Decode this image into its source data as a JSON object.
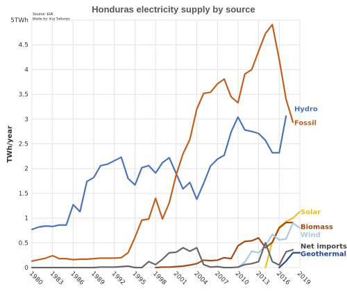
{
  "chart_data": {
    "type": "line",
    "title": "Honduras electricity supply by source",
    "source_lines": [
      "Source: EIA",
      "Made by: Koj Tallungs"
    ],
    "ylabel": "TWh/year",
    "xlabel": "",
    "xlim": [
      1980,
      2019
    ],
    "ylim": [
      0,
      5
    ],
    "x_ticks": [
      "1980",
      "1983",
      "1986",
      "1989",
      "1992",
      "1995",
      "1998",
      "2001",
      "2004",
      "2007",
      "2010",
      "2013",
      "2016",
      "2019"
    ],
    "y_ticks": [
      "0",
      "0.5",
      "1",
      "1.5",
      "2",
      "2.5",
      "3",
      "3.5",
      "4",
      "4.5",
      "5TWh"
    ],
    "grid": true,
    "series": [
      {
        "name": "Hydro",
        "color": "#4a72b5",
        "x": [
          1980,
          1981,
          1982,
          1983,
          1984,
          1985,
          1986,
          1987,
          1988,
          1989,
          1990,
          1991,
          1992,
          1993,
          1994,
          1995,
          1996,
          1997,
          1998,
          1999,
          2000,
          2001,
          2002,
          2003,
          2004,
          2005,
          2006,
          2007,
          2008,
          2009,
          2010,
          2011,
          2012,
          2013,
          2014,
          2015,
          2016,
          2017
        ],
        "values": [
          0.77,
          0.82,
          0.84,
          0.83,
          0.86,
          0.86,
          1.27,
          1.13,
          1.74,
          1.82,
          2.06,
          2.09,
          2.16,
          2.23,
          1.8,
          1.67,
          2.02,
          2.06,
          1.91,
          2.12,
          2.22,
          1.9,
          1.59,
          1.72,
          1.38,
          1.7,
          2.05,
          2.19,
          2.27,
          2.74,
          3.04,
          2.78,
          2.75,
          2.71,
          2.57,
          2.32,
          2.32,
          3.06
        ]
      },
      {
        "name": "Fossil",
        "color": "#c05f1e",
        "x": [
          1980,
          1981,
          1982,
          1983,
          1984,
          1985,
          1986,
          1987,
          1988,
          1989,
          1990,
          1991,
          1992,
          1993,
          1994,
          1995,
          1996,
          1997,
          1998,
          1999,
          2000,
          2001,
          2002,
          2003,
          2004,
          2005,
          2006,
          2007,
          2008,
          2009,
          2010,
          2011,
          2012,
          2013,
          2014,
          2015,
          2016,
          2017,
          2018
        ],
        "values": [
          0.13,
          0.16,
          0.19,
          0.24,
          0.18,
          0.18,
          0.16,
          0.17,
          0.17,
          0.18,
          0.19,
          0.19,
          0.19,
          0.2,
          0.3,
          0.61,
          0.96,
          0.98,
          1.4,
          0.98,
          1.31,
          1.87,
          2.3,
          2.59,
          3.2,
          3.52,
          3.54,
          3.71,
          3.81,
          3.45,
          3.33,
          3.91,
          4.0,
          4.37,
          4.73,
          4.91,
          4.21,
          3.4,
          2.94
        ]
      },
      {
        "name": "Solar",
        "color": "#e8c128",
        "x": [
          2014,
          2015,
          2016,
          2017,
          2018,
          2019
        ],
        "values": [
          0.0,
          0.52,
          0.82,
          0.93,
          1.0,
          1.13
        ]
      },
      {
        "name": "Biomass",
        "color": "#a04a17",
        "x": [
          1998,
          1999,
          2000,
          2001,
          2002,
          2003,
          2004,
          2005,
          2006,
          2007,
          2008,
          2009,
          2010,
          2011,
          2012,
          2013,
          2014,
          2015,
          2016,
          2017,
          2018
        ],
        "values": [
          0.0,
          0.01,
          0.01,
          0.02,
          0.03,
          0.05,
          0.08,
          0.15,
          0.14,
          0.15,
          0.2,
          0.18,
          0.44,
          0.53,
          0.54,
          0.6,
          0.4,
          0.51,
          0.8,
          0.91,
          0.91
        ]
      },
      {
        "name": "Wind",
        "color": "#a9c9e3",
        "x": [
          2010,
          2011,
          2012,
          2013,
          2014,
          2015,
          2016,
          2017,
          2018,
          2019
        ],
        "values": [
          0.0,
          0.11,
          0.33,
          0.3,
          0.45,
          0.67,
          0.56,
          0.58,
          0.9,
          0.8
        ]
      },
      {
        "name": "Net imports",
        "color": "#666666",
        "x": [
          1980,
          1981,
          1982,
          1983,
          1984,
          1985,
          1986,
          1987,
          1988,
          1989,
          1990,
          1991,
          1992,
          1993,
          1994,
          1995,
          1996,
          1997,
          1998,
          1999,
          2000,
          2001,
          2002,
          2003,
          2004,
          2005,
          2006,
          2007,
          2008,
          2009,
          2010,
          2011,
          2012,
          2013,
          2014,
          2015,
          2016,
          2017,
          2018
        ],
        "values": [
          0.0,
          0.0,
          0.0,
          0.0,
          0.0,
          0.0,
          0.0,
          0.0,
          0.0,
          0.0,
          0.01,
          0.01,
          0.01,
          0.02,
          0.03,
          0.0,
          0.0,
          0.12,
          0.06,
          0.17,
          0.3,
          0.31,
          0.4,
          0.33,
          0.4,
          0.06,
          0.01,
          0.02,
          0.0,
          0.0,
          0.01,
          0.06,
          0.08,
          0.12,
          0.5,
          0.12,
          0.05,
          0.32,
          0.36
        ]
      },
      {
        "name": "Geothermal",
        "color": "#2b4688",
        "x": [
          2016,
          2017,
          2018,
          2019
        ],
        "values": [
          0.0,
          0.13,
          0.3,
          0.3
        ]
      }
    ],
    "labels": [
      {
        "text": "Hydro",
        "color": "#4a72b5",
        "pos": "right-of-line"
      },
      {
        "text": "Fossil",
        "color": "#c05f1e",
        "pos": "right-of-line"
      },
      {
        "text": "Solar",
        "color": "#e8c128",
        "pos": "right-of-line"
      },
      {
        "text": "Biomass",
        "color": "#a04a17",
        "pos": "right-of-line"
      },
      {
        "text": "Wind",
        "color": "#a9c9e3",
        "pos": "right-of-line"
      },
      {
        "text": "Net imports",
        "color": "#444444",
        "pos": "right-of-line"
      },
      {
        "text": "Geothermal",
        "color": "#2b4688",
        "pos": "right-of-line"
      }
    ]
  }
}
